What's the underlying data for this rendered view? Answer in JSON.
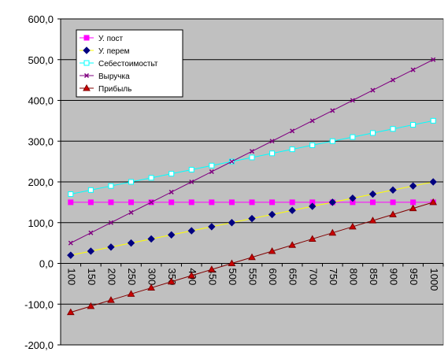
{
  "chart_data": {
    "type": "line",
    "title": "",
    "xlabel": "",
    "ylabel": "",
    "x": [
      100,
      150,
      200,
      250,
      300,
      350,
      400,
      450,
      500,
      550,
      600,
      650,
      700,
      750,
      800,
      850,
      900,
      950,
      1000
    ],
    "x_tick_labels": [
      "100",
      "150",
      "200",
      "250",
      "300",
      "350",
      "400",
      "450",
      "500",
      "550",
      "600",
      "650",
      "700",
      "750",
      "800",
      "850",
      "900",
      "950",
      "1000"
    ],
    "ylim": [
      -200,
      600
    ],
    "y_tick_values": [
      -200,
      -100,
      0,
      100,
      200,
      300,
      400,
      500,
      600
    ],
    "y_tick_labels": [
      "-200,0",
      "-100,0",
      "0,0",
      "100,0",
      "200,0",
      "300,0",
      "400,0",
      "500,0",
      "600,0"
    ],
    "grid": "horizontal",
    "plot_background": "#c0c0c0",
    "legend_position": "top-left",
    "series": [
      {
        "name": "У. пост",
        "color": "#ff00ff",
        "line_color": "#ff00ff",
        "marker": "square",
        "marker_fill": "#ff00ff",
        "marker_stroke": "#ff00ff",
        "values": [
          150,
          150,
          150,
          150,
          150,
          150,
          150,
          150,
          150,
          150,
          150,
          150,
          150,
          150,
          150,
          150,
          150,
          150,
          150
        ]
      },
      {
        "name": "У. перем",
        "color": "#000080",
        "line_color": "#ffff00",
        "marker": "diamond",
        "marker_fill": "#000080",
        "marker_stroke": "#000080",
        "values": [
          20,
          30,
          40,
          50,
          60,
          70,
          80,
          90,
          100,
          110,
          120,
          130,
          140,
          150,
          160,
          170,
          180,
          190,
          200
        ]
      },
      {
        "name": "Себестоимостьт",
        "color": "#00ffff",
        "line_color": "#00ffff",
        "marker": "square",
        "marker_fill": "#ffffff",
        "marker_stroke": "#00ffff",
        "values": [
          170,
          180,
          190,
          200,
          210,
          220,
          230,
          240,
          250,
          260,
          270,
          280,
          290,
          300,
          310,
          320,
          330,
          340,
          350
        ]
      },
      {
        "name": "Выручка",
        "color": "#800080",
        "line_color": "#800080",
        "marker": "x",
        "marker_fill": "#800080",
        "marker_stroke": "#800080",
        "values": [
          50,
          75,
          100,
          125,
          150,
          175,
          200,
          225,
          250,
          275,
          300,
          325,
          350,
          375,
          400,
          425,
          450,
          475,
          500
        ]
      },
      {
        "name": "Прибыль",
        "color": "#800000",
        "line_color": "#800000",
        "marker": "triangle",
        "marker_fill": "#cc0000",
        "marker_stroke": "#800000",
        "values": [
          -120,
          -105,
          -90,
          -75,
          -60,
          -45,
          -30,
          -15,
          0,
          15,
          30,
          45,
          60,
          75,
          90,
          105,
          120,
          135,
          150
        ]
      }
    ]
  }
}
